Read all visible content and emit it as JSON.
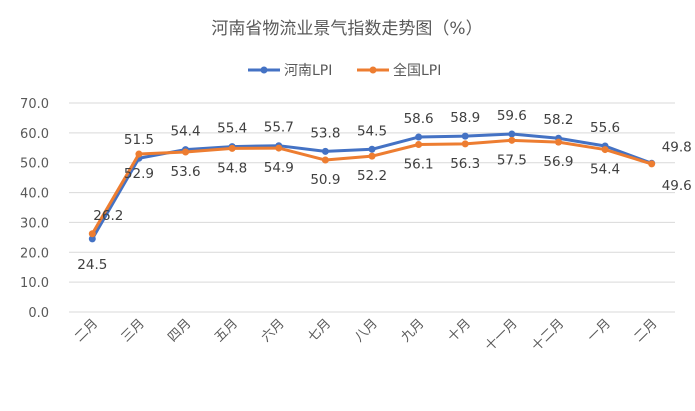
{
  "chart_data": {
    "type": "line",
    "title": "河南省物流业景气指数走势图（%）",
    "xlabel": "",
    "ylabel": "",
    "categories": [
      "二月",
      "三月",
      "四月",
      "五月",
      "六月",
      "七月",
      "八月",
      "九月",
      "十月",
      "十一月",
      "十二月",
      "一月",
      "二月"
    ],
    "ylim": [
      0,
      70
    ],
    "yticks": [
      "0.0",
      "10.0",
      "20.0",
      "30.0",
      "40.0",
      "50.0",
      "60.0",
      "70.0"
    ],
    "grid": true,
    "legend_position": "top-center",
    "series": [
      {
        "name": "河南LPI",
        "color": "#4472C4",
        "values": [
          24.5,
          51.5,
          54.4,
          55.4,
          55.7,
          53.8,
          54.5,
          58.6,
          58.9,
          59.6,
          58.2,
          55.6,
          49.8
        ],
        "labels": [
          "24.5",
          "51.5",
          "54.4",
          "55.4",
          "55.7",
          "53.8",
          "54.5",
          "58.6",
          "58.9",
          "59.6",
          "58.2",
          "55.6",
          "49.8"
        ]
      },
      {
        "name": "全国LPI",
        "color": "#ED7D31",
        "values": [
          26.2,
          52.9,
          53.6,
          54.8,
          54.9,
          50.9,
          52.2,
          56.1,
          56.3,
          57.5,
          56.9,
          54.4,
          49.6
        ],
        "labels": [
          "26.2",
          "52.9",
          "53.6",
          "54.8",
          "54.9",
          "50.9",
          "52.2",
          "56.1",
          "56.3",
          "57.5",
          "56.9",
          "54.4",
          "49.6"
        ]
      }
    ]
  }
}
